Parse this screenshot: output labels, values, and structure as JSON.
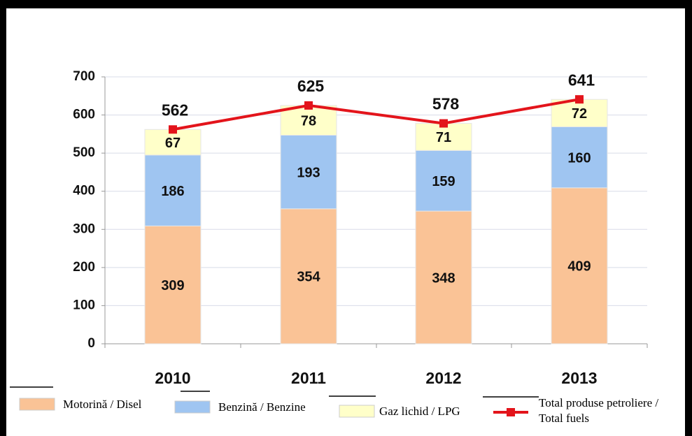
{
  "chart_data": {
    "type": "bar",
    "stacked": true,
    "categories": [
      "2010",
      "2011",
      "2012",
      "2013"
    ],
    "series": [
      {
        "name": "Motorină / Disel",
        "color": "#fac396",
        "values": [
          309,
          354,
          348,
          409
        ]
      },
      {
        "name": "Benzină / Benzine",
        "color": "#9fc5f1",
        "values": [
          186,
          193,
          159,
          160
        ]
      },
      {
        "name": "Gaz lichid / LPG",
        "color": "#ffffc9",
        "values": [
          67,
          78,
          71,
          72
        ]
      },
      {
        "name": "Total produse petroliere / Total fuels",
        "type": "line",
        "color": "#e3141b",
        "values": [
          562,
          625,
          578,
          641
        ]
      }
    ],
    "ylim": [
      0,
      700
    ],
    "yticks": [
      0,
      100,
      200,
      300,
      400,
      500,
      600,
      700
    ],
    "grid": true,
    "legend": "bottom"
  }
}
